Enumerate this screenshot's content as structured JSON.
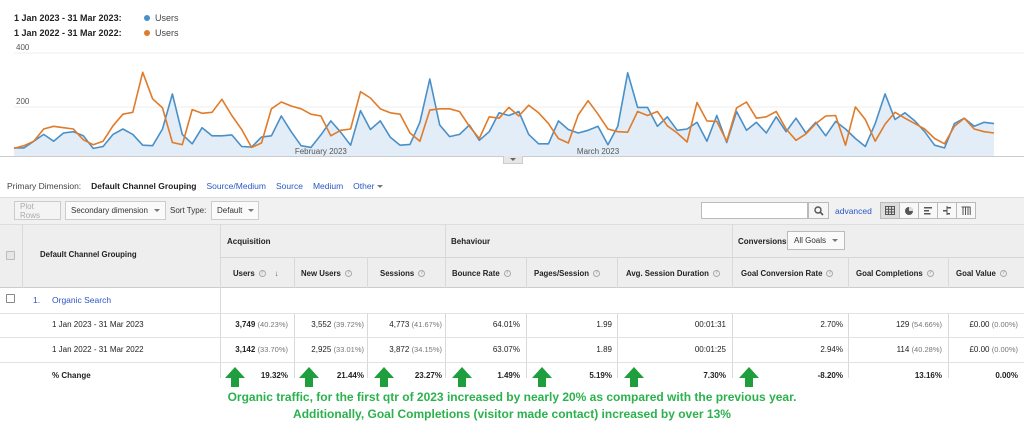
{
  "legend": [
    {
      "range": "1 Jan 2023 - 31 Mar 2023:",
      "series": "Users",
      "color": "#4a90c8"
    },
    {
      "range": "1 Jan 2022 - 31 Mar 2022:",
      "series": "Users",
      "color": "#e07b2a"
    }
  ],
  "chart_data": {
    "type": "line",
    "title": "",
    "xlabel": "",
    "ylabel": "",
    "ylim": [
      0,
      400
    ],
    "y_ticks": [
      "400",
      "200"
    ],
    "x_tick_labels": [
      {
        "label": "February 2023",
        "index": 31
      },
      {
        "label": "March 2023",
        "index": 59
      }
    ],
    "series": [
      {
        "name": "Users",
        "period": "1 Jan 2023 - 31 Mar 2023",
        "color": "#4a90c8",
        "fill": true,
        "values": [
          30,
          30,
          55,
          80,
          55,
          85,
          90,
          75,
          28,
          35,
          80,
          100,
          80,
          40,
          38,
          100,
          230,
          80,
          45,
          105,
          75,
          75,
          78,
          35,
          33,
          70,
          75,
          148,
          90,
          38,
          32,
          78,
          130,
          88,
          40,
          168,
          98,
          130,
          70,
          40,
          43,
          125,
          285,
          115,
          72,
          80,
          115,
          58,
          90,
          160,
          150,
          165,
          80,
          45,
          45,
          130,
          98,
          85,
          95,
          110,
          42,
          110,
          308,
          180,
          180,
          110,
          145,
          95,
          100,
          125,
          55,
          150,
          50,
          165,
          95,
          125,
          85,
          145,
          90,
          140,
          85,
          125,
          75,
          128,
          100,
          65,
          35,
          120,
          230,
          135,
          160,
          130,
          90,
          40,
          30,
          120,
          140,
          110,
          125,
          120
        ]
      },
      {
        "name": "Users",
        "period": "1 Jan 2022 - 31 Mar 2022",
        "color": "#e07b2a",
        "fill": false,
        "values": [
          28,
          38,
          55,
          100,
          110,
          105,
          100,
          60,
          42,
          55,
          112,
          155,
          162,
          310,
          212,
          178,
          50,
          42,
          172,
          158,
          162,
          210,
          150,
          98,
          32,
          48,
          175,
          200,
          185,
          175,
          155,
          148,
          75,
          95,
          100,
          238,
          215,
          175,
          160,
          155,
          85,
          55,
          170,
          175,
          175,
          165,
          110,
          65,
          145,
          140,
          180,
          148,
          188,
          160,
          120,
          65,
          48,
          152,
          205,
          155,
          100,
          90,
          88,
          165,
          150,
          165,
          112,
          85,
          52,
          198,
          130,
          128,
          55,
          178,
          200,
          140,
          145,
          165,
          100,
          58,
          82,
          120,
          148,
          150,
          40,
          182,
          135,
          55,
          118,
          162,
          140,
          120,
          100,
          65,
          45,
          110,
          140,
          100,
          90,
          85
        ]
      }
    ]
  },
  "primary_dimension": {
    "label": "Primary Dimension:",
    "active": "Default Channel Grouping",
    "links": [
      "Source/Medium",
      "Source",
      "Medium"
    ],
    "other": "Other"
  },
  "toolbar": {
    "plot_rows": "Plot Rows",
    "secondary_dimension": "Secondary dimension",
    "sort_type_label": "Sort Type:",
    "sort_type_value": "Default",
    "advanced": "advanced"
  },
  "table": {
    "dimension_header": "Default Channel Grouping",
    "groups": {
      "acquisition": "Acquisition",
      "behaviour": "Behaviour",
      "conversions": "Conversions"
    },
    "goals_select": "All Goals",
    "columns": [
      "Users",
      "New Users",
      "Sessions",
      "Bounce Rate",
      "Pages/Session",
      "Avg. Session Duration",
      "Goal Conversion Rate",
      "Goal Completions",
      "Goal Value"
    ],
    "row_index": "1.",
    "row_label": "Organic Search",
    "periods": [
      {
        "label": "1 Jan 2023 - 31 Mar 2023",
        "users": "3,749",
        "users_pct": "(40.23%)",
        "new_users": "3,552",
        "new_users_pct": "(39.72%)",
        "sessions": "4,773",
        "sessions_pct": "(41.67%)",
        "bounce_rate": "64.01%",
        "pages_session": "1.99",
        "avg_duration": "00:01:31",
        "goal_conv_rate": "2.70%",
        "goal_completions": "129",
        "goal_completions_pct": "(54.66%)",
        "goal_value": "£0.00",
        "goal_value_pct": "(0.00%)"
      },
      {
        "label": "1 Jan 2022 - 31 Mar 2022",
        "users": "3,142",
        "users_pct": "(33.70%)",
        "new_users": "2,925",
        "new_users_pct": "(33.01%)",
        "sessions": "3,872",
        "sessions_pct": "(34.15%)",
        "bounce_rate": "63.07%",
        "pages_session": "1.89",
        "avg_duration": "00:01:25",
        "goal_conv_rate": "2.94%",
        "goal_completions": "114",
        "goal_completions_pct": "(40.28%)",
        "goal_value": "£0.00",
        "goal_value_pct": "(0.00%)"
      }
    ],
    "change": {
      "label": "% Change",
      "users": "19.32%",
      "new_users": "21.44%",
      "sessions": "23.27%",
      "bounce_rate": "1.49%",
      "pages_session": "5.19%",
      "avg_duration": "7.30%",
      "goal_conv_rate": "-8.20%",
      "goal_completions": "13.16%",
      "goal_value": "0.00%"
    }
  },
  "caption": {
    "line1": "Organic traffic, for the first qtr of 2023 increased by nearly 20% as compared with the previous year.",
    "line2": "Additionally, Goal Completions (visitor made contact) increased by over 13%",
    "color": "#2bb24c"
  }
}
